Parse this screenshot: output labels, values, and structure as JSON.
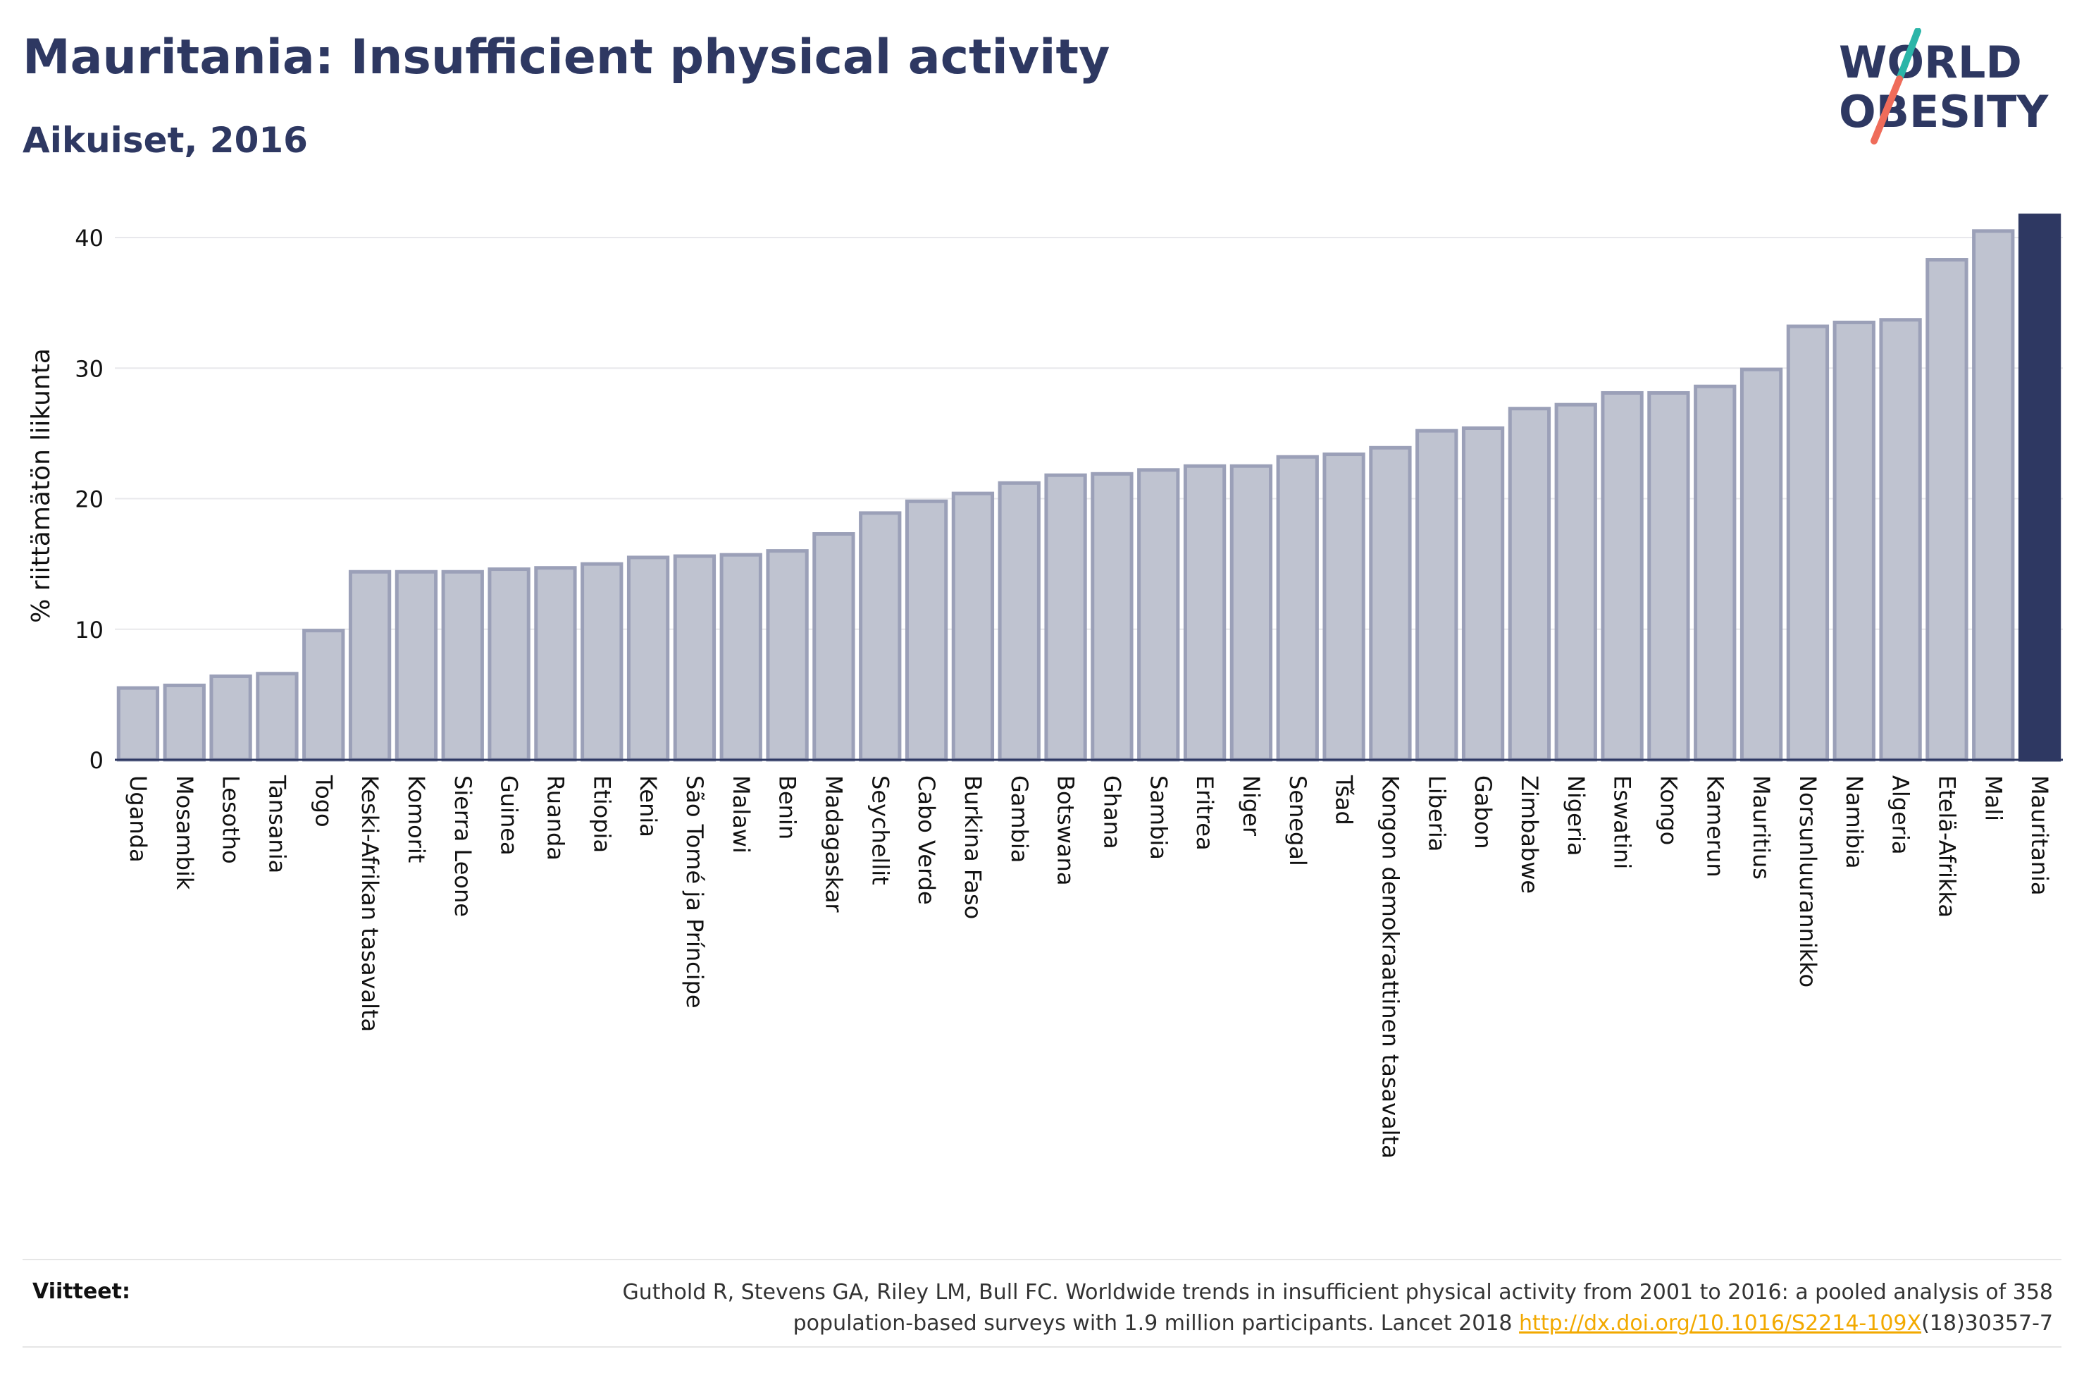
{
  "header": {
    "title": "Mauritania: Insufficient physical activity",
    "subtitle": "Aikuiset, 2016"
  },
  "logo": {
    "line1": "WORLD",
    "line2": "OBESITY"
  },
  "footer": {
    "label": "Viitteet:",
    "citation_part1": "Guthold R, Stevens GA, Riley LM, Bull FC. Worldwide trends in insufficient physical activity from 2001 to 2016: a pooled analysis of 358",
    "citation_part2": "population-based surveys with 1.9 million participants. Lancet 2018 ",
    "link_text": "http://dx.doi.org/10.1016/S2214-109X",
    "citation_part3": "(18)30357-7"
  },
  "colors": {
    "bar_fill": "#bfc3d0",
    "bar_stroke": "#9ba0b8",
    "highlight": "#2e3862",
    "grid": "#e8e8ec",
    "axis": "#2e3862"
  },
  "chart_data": {
    "type": "bar",
    "ylabel": "% riittämätön liikunta",
    "ylim": [
      0,
      42
    ],
    "yticks": [
      0,
      10,
      20,
      30,
      40
    ],
    "grid": true,
    "highlight_category": "Mauritania",
    "categories": [
      "Uganda",
      "Mosambik",
      "Lesotho",
      "Tansania",
      "Togo",
      "Keski-Afrikan tasavalta",
      "Komorit",
      "Sierra Leone",
      "Guinea",
      "Ruanda",
      "Etiopia",
      "Kenia",
      "São Tomé ja Príncipe",
      "Malawi",
      "Benin",
      "Madagaskar",
      "Seychellit",
      "Cabo Verde",
      "Burkina Faso",
      "Gambia",
      "Botswana",
      "Ghana",
      "Sambia",
      "Eritrea",
      "Niger",
      "Senegal",
      "Tšad",
      "Kongon demokraattinen tasavalta",
      "Liberia",
      "Gabon",
      "Zimbabwe",
      "Nigeria",
      "Eswatini",
      "Kongo",
      "Kamerun",
      "Mauritius",
      "Norsunluurannikko",
      "Namibia",
      "Algeria",
      "Etelä-Afrikka",
      "Mali",
      "Mauritania"
    ],
    "values": [
      5.5,
      5.7,
      6.4,
      6.6,
      9.9,
      14.4,
      14.4,
      14.4,
      14.6,
      14.7,
      15.0,
      15.5,
      15.6,
      15.7,
      16.0,
      17.3,
      18.9,
      19.8,
      20.4,
      21.2,
      21.8,
      21.9,
      22.2,
      22.5,
      22.5,
      23.2,
      23.4,
      23.9,
      25.2,
      25.4,
      26.9,
      27.2,
      28.1,
      28.1,
      28.6,
      29.9,
      33.2,
      33.5,
      33.7,
      38.3,
      40.5,
      41.7
    ]
  }
}
